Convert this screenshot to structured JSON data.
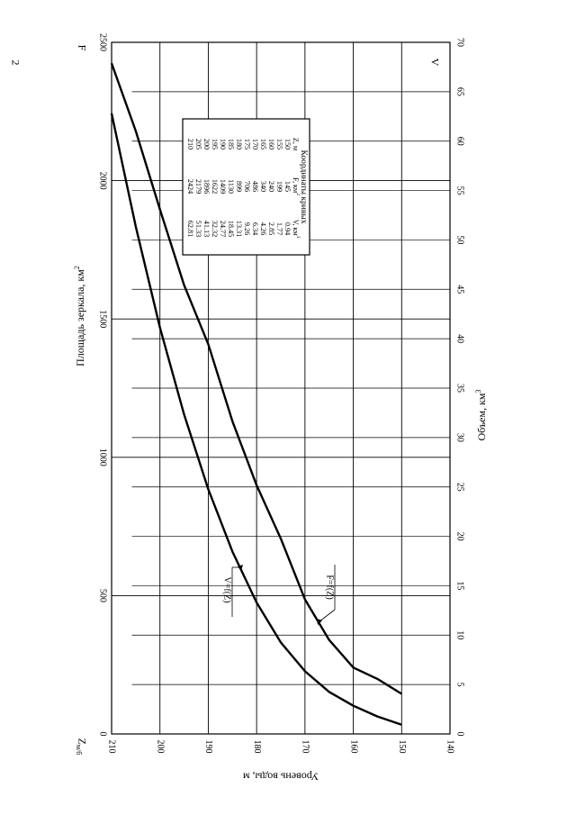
{
  "page_number": "2",
  "chart_data": {
    "type": "line",
    "orientation": "rotated-90",
    "z_axis": {
      "label_prefix": "Z",
      "label_subscript": "м/б",
      "title": "Уровень воды, м",
      "range": [
        140,
        210
      ],
      "ticks": [
        "210",
        "200",
        "190",
        "180",
        "170",
        "160",
        "150",
        "140"
      ]
    },
    "area_axis": {
      "title_text": "Площадь зеркала, км",
      "title_sup": "2",
      "end_label": "F",
      "range": [
        0,
        2500
      ],
      "ticks": [
        "0",
        "500",
        "1000",
        "1500",
        "2000",
        "2500"
      ]
    },
    "volume_axis": {
      "title_text": "Объем, км",
      "title_sup": "3",
      "end_label": "V",
      "range": [
        0,
        70
      ],
      "ticks": [
        "0",
        "5",
        "10",
        "15",
        "20",
        "25",
        "30",
        "35",
        "40",
        "45",
        "50",
        "55",
        "60",
        "65",
        "70"
      ]
    },
    "grid": true,
    "series": [
      {
        "name": "F=f(Z)",
        "axis": "area",
        "z": [
          150,
          155,
          160,
          165,
          170,
          175,
          180,
          185,
          190,
          195,
          200,
          205,
          210
        ],
        "values": [
          145,
          199,
          240,
          340,
          486,
          706,
          899,
          1130,
          1409,
          1622,
          1896,
          2179,
          2424
        ]
      },
      {
        "name": "V=f(Z)",
        "axis": "volume",
        "z": [
          150,
          155,
          160,
          165,
          170,
          175,
          180,
          185,
          190,
          195,
          200,
          205,
          210
        ],
        "values": [
          0.94,
          1.77,
          2.85,
          4.26,
          6.34,
          9.26,
          13.31,
          18.45,
          24.77,
          32.32,
          41.13,
          51.33,
          62.81
        ]
      }
    ],
    "table": {
      "title": "Координаты кривых",
      "headers": [
        {
          "text": "Z, м",
          "sup": ""
        },
        {
          "text": "F, км",
          "sup": "2"
        },
        {
          "text": "V, км",
          "sup": "3"
        }
      ],
      "rows": [
        [
          "150",
          "145",
          "0.94"
        ],
        [
          "155",
          "199",
          "1.77"
        ],
        [
          "160",
          "240",
          "2.85"
        ],
        [
          "165",
          "340",
          "4.26"
        ],
        [
          "170",
          "486",
          "6.34"
        ],
        [
          "175",
          "706",
          "9.26"
        ],
        [
          "180",
          "899",
          "13.31"
        ],
        [
          "185",
          "1130",
          "18.45"
        ],
        [
          "190",
          "1409",
          "24.77"
        ],
        [
          "195",
          "1622",
          "32.32"
        ],
        [
          "200",
          "1896",
          "41.13"
        ],
        [
          "205",
          "2179",
          "51.33"
        ],
        [
          "210",
          "2424",
          "62.81"
        ]
      ]
    }
  }
}
